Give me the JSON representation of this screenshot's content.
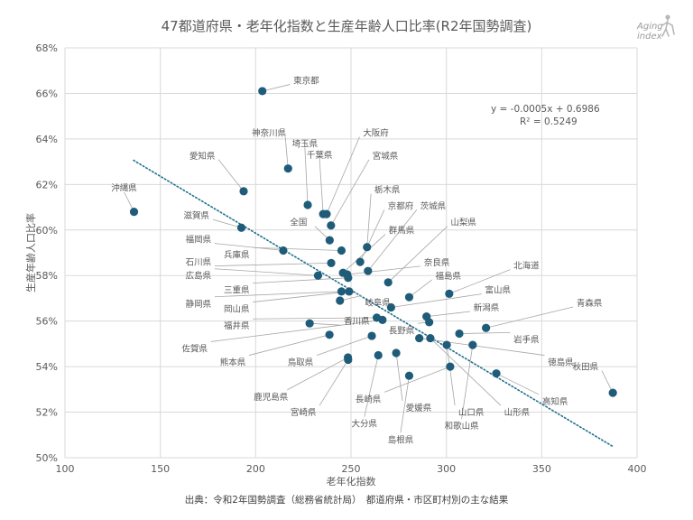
{
  "title": "47都道府県・老年化指数と生産年齢人口比率(R2年国勢調査)",
  "logo": {
    "line1": "Aging",
    "line2": "index",
    "name": "aging-index-logo"
  },
  "source": "出典：令和2年国勢調査（総務省統計局）　都道府県・市区町村別の主な結果",
  "chart_data": {
    "type": "scatter",
    "title": "47都道府県・老年化指数と生産年齢人口比率(R2年国勢調査)",
    "xlabel": "老年化指数",
    "ylabel": "生産年齢人口比率",
    "xlim": [
      100,
      400
    ],
    "ylim": [
      0.5,
      0.68
    ],
    "x_ticks": [
      "100",
      "150",
      "200",
      "250",
      "300",
      "350",
      "400"
    ],
    "y_ticks": [
      "50%",
      "52%",
      "54%",
      "56%",
      "58%",
      "60%",
      "62%",
      "64%",
      "66%",
      "68%"
    ],
    "grid": true,
    "marker_color": "#1f5c7a",
    "trendline": {
      "style": "dotted",
      "color": "#1f6f8f",
      "equation": "y = -0.0005x + 0.6986",
      "r2": "R² = 0.5249",
      "x_range": [
        136,
        387
      ]
    },
    "points": [
      {
        "name": "東京都",
        "x": 203.5,
        "y": 0.661
      },
      {
        "name": "神奈川県",
        "x": 217.0,
        "y": 0.627
      },
      {
        "name": "愛知県",
        "x": 193.7,
        "y": 0.617
      },
      {
        "name": "沖縄県",
        "x": 136.2,
        "y": 0.608
      },
      {
        "name": "埼玉県",
        "x": 227.3,
        "y": 0.611
      },
      {
        "name": "千葉県",
        "x": 235.4,
        "y": 0.607
      },
      {
        "name": "大阪府",
        "x": 237.2,
        "y": 0.607
      },
      {
        "name": "宮城県",
        "x": 239.5,
        "y": 0.602
      },
      {
        "name": "滋賀県",
        "x": 192.5,
        "y": 0.601
      },
      {
        "name": "栃木県",
        "x": 258.4,
        "y": 0.5925
      },
      {
        "name": "京都府",
        "x": 254.8,
        "y": 0.586
      },
      {
        "name": "茨城県",
        "x": 258.9,
        "y": 0.582
      },
      {
        "name": "全国",
        "x": 238.8,
        "y": 0.5955
      },
      {
        "name": "福岡県",
        "x": 214.5,
        "y": 0.591
      },
      {
        "name": "兵庫県",
        "x": 245.0,
        "y": 0.591
      },
      {
        "name": "石川県",
        "x": 239.6,
        "y": 0.5855
      },
      {
        "name": "広島県",
        "x": 232.7,
        "y": 0.58
      },
      {
        "name": "群馬県",
        "x": 245.8,
        "y": 0.5812
      },
      {
        "name": "山梨県",
        "x": 269.5,
        "y": 0.577
      },
      {
        "name": "奈良県",
        "x": 248.0,
        "y": 0.5805
      },
      {
        "name": "三重県",
        "x": 248.5,
        "y": 0.579
      },
      {
        "name": "静岡県",
        "x": 245.0,
        "y": 0.573
      },
      {
        "name": "岡山県",
        "x": 249.0,
        "y": 0.573
      },
      {
        "name": "福島県",
        "x": 280.5,
        "y": 0.5705
      },
      {
        "name": "北海道",
        "x": 301.5,
        "y": 0.572
      },
      {
        "name": "岐阜県",
        "x": 244.2,
        "y": 0.569
      },
      {
        "name": "富山県",
        "x": 271.0,
        "y": 0.566
      },
      {
        "name": "新潟県",
        "x": 289.6,
        "y": 0.562
      },
      {
        "name": "福井県",
        "x": 263.5,
        "y": 0.5615
      },
      {
        "name": "佐賀県",
        "x": 266.5,
        "y": 0.5605
      },
      {
        "name": "青森県",
        "x": 320.8,
        "y": 0.557
      },
      {
        "name": "長野県",
        "x": 291.0,
        "y": 0.5595
      },
      {
        "name": "香川県",
        "x": 228.3,
        "y": 0.559
      },
      {
        "name": "熊本県",
        "x": 238.7,
        "y": 0.554
      },
      {
        "name": "岩手県",
        "x": 306.8,
        "y": 0.5545
      },
      {
        "name": "鳥取県",
        "x": 260.9,
        "y": 0.5535
      },
      {
        "name": "徳島県",
        "x": 285.8,
        "y": 0.5525
      },
      {
        "name": "山口県",
        "x": 300.2,
        "y": 0.5495
      },
      {
        "name": "山形県",
        "x": 291.6,
        "y": 0.5525
      },
      {
        "name": "和歌山県",
        "x": 313.8,
        "y": 0.5495
      },
      {
        "name": "愛媛県",
        "x": 273.7,
        "y": 0.546
      },
      {
        "name": "大分県",
        "x": 264.3,
        "y": 0.545
      },
      {
        "name": "鹿児島県",
        "x": 248.4,
        "y": 0.544
      },
      {
        "name": "宮崎県",
        "x": 248.5,
        "y": 0.543
      },
      {
        "name": "長崎県",
        "x": 302.0,
        "y": 0.54
      },
      {
        "name": "高知県",
        "x": 326.2,
        "y": 0.537
      },
      {
        "name": "島根県",
        "x": 280.5,
        "y": 0.536
      },
      {
        "name": "秋田県",
        "x": 387.3,
        "y": 0.5285
      }
    ],
    "labels": [
      {
        "name": "東京都",
        "lx": 226.5,
        "ly": 0.6655,
        "anchor": "middle"
      },
      {
        "name": "神奈川県",
        "lx": 207.0,
        "ly": 0.6425,
        "anchor": "middle"
      },
      {
        "name": "埼玉県",
        "lx": 225.8,
        "ly": 0.6378,
        "anchor": "middle"
      },
      {
        "name": "千葉県",
        "lx": 233.5,
        "ly": 0.6328,
        "anchor": "middle"
      },
      {
        "name": "大阪府",
        "lx": 263.0,
        "ly": 0.6425,
        "anchor": "middle"
      },
      {
        "name": "宮城県",
        "lx": 268.0,
        "ly": 0.6325,
        "anchor": "middle"
      },
      {
        "name": "愛知県",
        "lx": 172.0,
        "ly": 0.6325,
        "anchor": "middle"
      },
      {
        "name": "沖縄県",
        "lx": 131.0,
        "ly": 0.6183,
        "anchor": "middle"
      },
      {
        "name": "栃木県",
        "lx": 269.0,
        "ly": 0.6175,
        "anchor": "middle"
      },
      {
        "name": "京都府",
        "lx": 276.0,
        "ly": 0.6105,
        "anchor": "middle"
      },
      {
        "name": "茨城県",
        "lx": 293.0,
        "ly": 0.6105,
        "anchor": "middle"
      },
      {
        "name": "滋賀県",
        "lx": 169.0,
        "ly": 0.6062,
        "anchor": "middle"
      },
      {
        "name": "全国",
        "lx": 222.5,
        "ly": 0.6032,
        "anchor": "middle"
      },
      {
        "name": "山梨県",
        "lx": 309.0,
        "ly": 0.6032,
        "anchor": "middle"
      },
      {
        "name": "群馬県",
        "lx": 276.5,
        "ly": 0.5997,
        "anchor": "middle"
      },
      {
        "name": "福岡県",
        "lx": 170.0,
        "ly": 0.5957,
        "anchor": "middle"
      },
      {
        "name": "奈良県",
        "lx": 295.0,
        "ly": 0.5857,
        "anchor": "middle"
      },
      {
        "name": "北海道",
        "lx": 342.0,
        "ly": 0.5842,
        "anchor": "middle"
      },
      {
        "name": "兵庫県",
        "lx": 190.0,
        "ly": 0.5891,
        "anchor": "middle"
      },
      {
        "name": "福島県",
        "lx": 301.0,
        "ly": 0.5797,
        "anchor": "middle"
      },
      {
        "name": "石川県",
        "lx": 170.0,
        "ly": 0.5858,
        "anchor": "middle"
      },
      {
        "name": "広島県",
        "lx": 170.0,
        "ly": 0.5798,
        "anchor": "middle"
      },
      {
        "name": "富山県",
        "lx": 327.0,
        "ly": 0.5735,
        "anchor": "middle"
      },
      {
        "name": "三重県",
        "lx": 190.0,
        "ly": 0.5735,
        "anchor": "middle"
      },
      {
        "name": "青森県",
        "lx": 375.0,
        "ly": 0.5678,
        "anchor": "middle"
      },
      {
        "name": "静岡県",
        "lx": 170.0,
        "ly": 0.5675,
        "anchor": "middle"
      },
      {
        "name": "岐阜県",
        "lx": 264.0,
        "ly": 0.568,
        "anchor": "middle"
      },
      {
        "name": "新潟県",
        "lx": 321.0,
        "ly": 0.5658,
        "anchor": "middle"
      },
      {
        "name": "岡山県",
        "lx": 190.0,
        "ly": 0.5652,
        "anchor": "middle"
      },
      {
        "name": "香川県",
        "lx": 253.0,
        "ly": 0.5598,
        "anchor": "middle"
      },
      {
        "name": "福井県",
        "lx": 190.0,
        "ly": 0.5578,
        "anchor": "middle"
      },
      {
        "name": "長野県",
        "lx": 276.5,
        "ly": 0.5558,
        "anchor": "middle"
      },
      {
        "name": "岩手県",
        "lx": 342.0,
        "ly": 0.5518,
        "anchor": "middle"
      },
      {
        "name": "佐賀県",
        "lx": 168.0,
        "ly": 0.5478,
        "anchor": "middle"
      },
      {
        "name": "熊本県",
        "lx": 188.0,
        "ly": 0.5418,
        "anchor": "middle"
      },
      {
        "name": "鳥取県",
        "lx": 223.5,
        "ly": 0.5418,
        "anchor": "middle"
      },
      {
        "name": "徳島県",
        "lx": 360.0,
        "ly": 0.5418,
        "anchor": "middle"
      },
      {
        "name": "秋田県",
        "lx": 373.0,
        "ly": 0.5398,
        "anchor": "middle"
      },
      {
        "name": "高知県",
        "lx": 357.0,
        "ly": 0.5246,
        "anchor": "middle"
      },
      {
        "name": "鹿児島県",
        "lx": 208.0,
        "ly": 0.5266,
        "anchor": "middle"
      },
      {
        "name": "長崎県",
        "lx": 259.0,
        "ly": 0.5256,
        "anchor": "middle"
      },
      {
        "name": "愛媛県",
        "lx": 285.5,
        "ly": 0.5218,
        "anchor": "middle"
      },
      {
        "name": "山口県",
        "lx": 313.0,
        "ly": 0.5198,
        "anchor": "middle"
      },
      {
        "name": "山形県",
        "lx": 337.0,
        "ly": 0.5198,
        "anchor": "middle"
      },
      {
        "name": "宮崎県",
        "lx": 225.0,
        "ly": 0.5198,
        "anchor": "middle"
      },
      {
        "name": "大分県",
        "lx": 257.0,
        "ly": 0.5148,
        "anchor": "middle"
      },
      {
        "name": "和歌山県",
        "lx": 308.0,
        "ly": 0.5138,
        "anchor": "middle"
      },
      {
        "name": "島根県",
        "lx": 276.0,
        "ly": 0.5078,
        "anchor": "middle"
      }
    ]
  }
}
